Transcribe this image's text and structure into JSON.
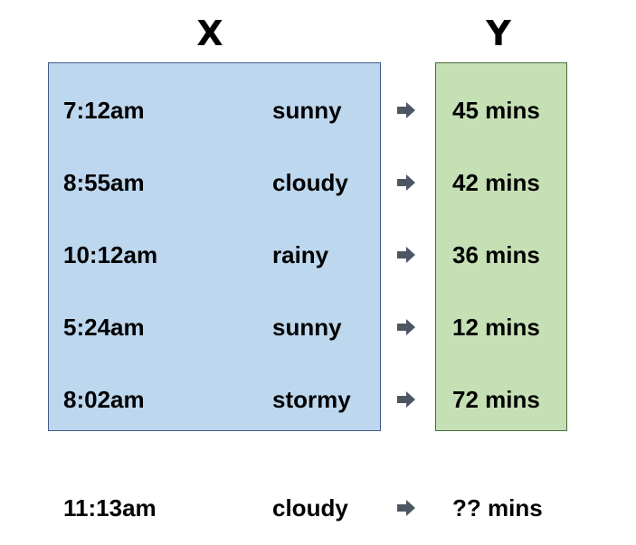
{
  "header": {
    "x_label": "X",
    "y_label": "Y"
  },
  "colors": {
    "x_box_fill": "#bdd7ee",
    "y_box_fill": "#c5e0b4",
    "arrow": "#4d5763"
  },
  "rows": [
    {
      "time": "7:12am",
      "weather": "sunny",
      "result": "45 mins"
    },
    {
      "time": "8:55am",
      "weather": "cloudy",
      "result": "42 mins"
    },
    {
      "time": "10:12am",
      "weather": "rainy",
      "result": "36 mins"
    },
    {
      "time": "5:24am",
      "weather": "sunny",
      "result": "12 mins"
    },
    {
      "time": "8:02am",
      "weather": "stormy",
      "result": "72 mins"
    }
  ],
  "query": {
    "time": "11:13am",
    "weather": "cloudy",
    "result": "?? mins"
  }
}
